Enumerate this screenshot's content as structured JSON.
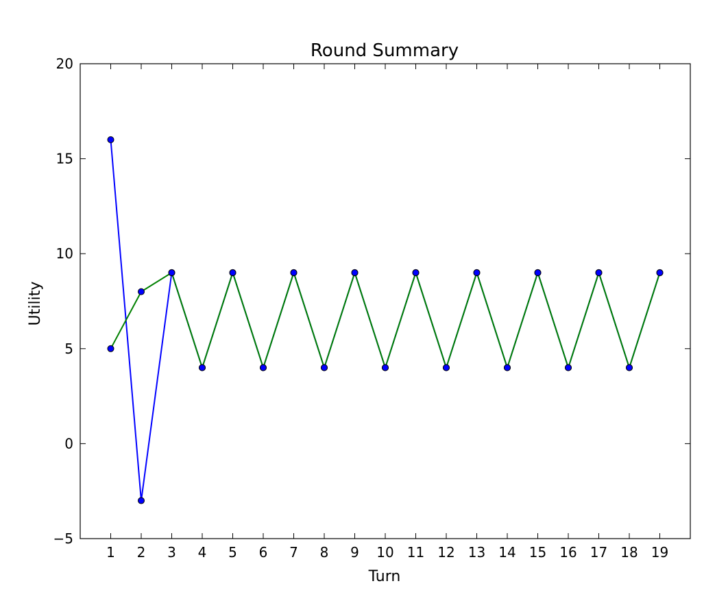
{
  "chart_data": {
    "type": "line",
    "title": "Round Summary",
    "xlabel": "Turn",
    "ylabel": "Utility",
    "x": [
      1,
      2,
      3,
      4,
      5,
      6,
      7,
      8,
      9,
      10,
      11,
      12,
      13,
      14,
      15,
      16,
      17,
      18,
      19
    ],
    "xlim": [
      0,
      20
    ],
    "ylim": [
      -5,
      20
    ],
    "xticks": [
      1,
      2,
      3,
      4,
      5,
      6,
      7,
      8,
      9,
      10,
      11,
      12,
      13,
      14,
      15,
      16,
      17,
      18,
      19
    ],
    "yticks": [
      -5,
      0,
      5,
      10,
      15,
      20
    ],
    "ytick_labels": [
      "−5",
      "0",
      "5",
      "10",
      "15",
      "20"
    ],
    "grid": false,
    "series": [
      {
        "color": "#0000ff",
        "marker": "circle",
        "values": [
          16,
          -3,
          9,
          4,
          9,
          4,
          9,
          4,
          9,
          4,
          9,
          4,
          9,
          4,
          9,
          4,
          9,
          4,
          9
        ]
      },
      {
        "color": "#008000",
        "marker": "circle",
        "values": [
          5,
          8,
          9,
          4,
          9,
          4,
          9,
          4,
          9,
          4,
          9,
          4,
          9,
          4,
          9,
          4,
          9,
          4,
          9
        ]
      }
    ],
    "marker_color": "#0000ff"
  }
}
